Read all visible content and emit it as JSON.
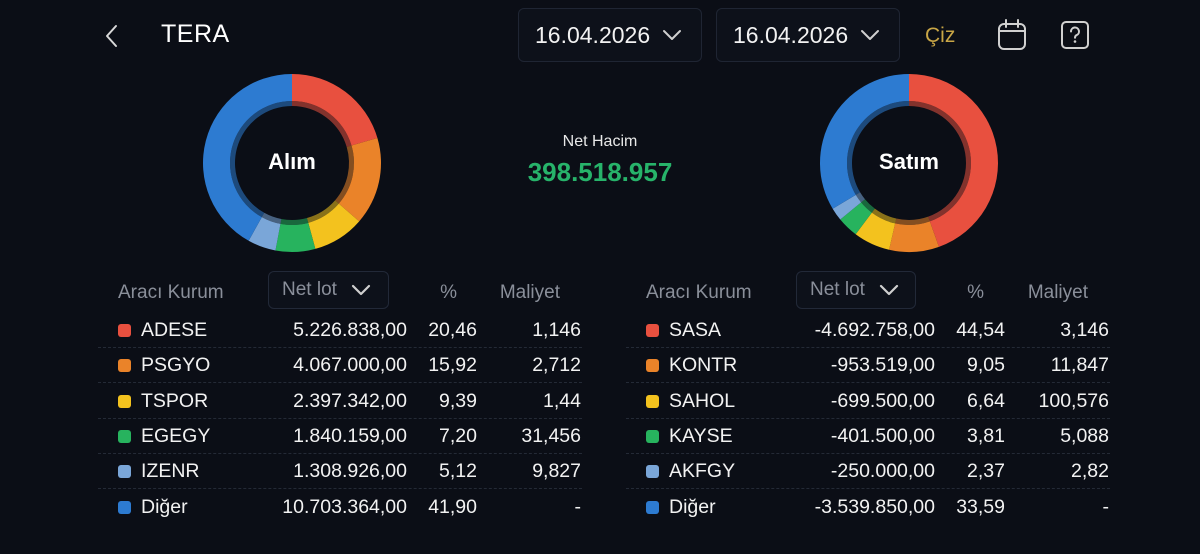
{
  "header": {
    "title": "TERA",
    "date_from": "16.04.2026",
    "date_to": "16.04.2026",
    "draw_label": "Çiz",
    "icons": [
      "back-chevron-icon",
      "calendar-icon",
      "help-question-icon"
    ]
  },
  "summary": {
    "net_volume_label": "Net Hacim",
    "net_volume_value": "398.518.957",
    "net_volume_color": "#27b36a"
  },
  "colors": {
    "c1": "#e8503f",
    "c2": "#ea8329",
    "c3": "#f3c21e",
    "c4": "#27b35e",
    "c5": "#7aa6d8",
    "c6": "#2d7bd1"
  },
  "buy": {
    "donut_label": "Alım",
    "columns": {
      "broker": "Aracı Kurum",
      "net_lot": "Net lot",
      "pct": "%",
      "cost": "Maliyet"
    },
    "rows": [
      {
        "name": "ADESE",
        "lot": "5.226.838,00",
        "pct": "20,46",
        "cost": "1,146",
        "color": "#e8503f"
      },
      {
        "name": "PSGYO",
        "lot": "4.067.000,00",
        "pct": "15,92",
        "cost": "2,712",
        "color": "#ea8329"
      },
      {
        "name": "TSPOR",
        "lot": "2.397.342,00",
        "pct": "9,39",
        "cost": "1,44",
        "color": "#f3c21e"
      },
      {
        "name": "EGEGY",
        "lot": "1.840.159,00",
        "pct": "7,20",
        "cost": "31,456",
        "color": "#27b35e"
      },
      {
        "name": "IZENR",
        "lot": "1.308.926,00",
        "pct": "5,12",
        "cost": "9,827",
        "color": "#7aa6d8"
      },
      {
        "name": "Diğer",
        "lot": "10.703.364,00",
        "pct": "41,90",
        "cost": "-",
        "color": "#2d7bd1"
      }
    ]
  },
  "sell": {
    "donut_label": "Satım",
    "columns": {
      "broker": "Aracı Kurum",
      "net_lot": "Net lot",
      "pct": "%",
      "cost": "Maliyet"
    },
    "rows": [
      {
        "name": "SASA",
        "lot": "-4.692.758,00",
        "pct": "44,54",
        "cost": "3,146",
        "color": "#e8503f"
      },
      {
        "name": "KONTR",
        "lot": "-953.519,00",
        "pct": "9,05",
        "cost": "11,847",
        "color": "#ea8329"
      },
      {
        "name": "SAHOL",
        "lot": "-699.500,00",
        "pct": "6,64",
        "cost": "100,576",
        "color": "#f3c21e"
      },
      {
        "name": "KAYSE",
        "lot": "-401.500,00",
        "pct": "3,81",
        "cost": "5,088",
        "color": "#27b35e"
      },
      {
        "name": "AKFGY",
        "lot": "-250.000,00",
        "pct": "2,37",
        "cost": "2,82",
        "color": "#7aa6d8"
      },
      {
        "name": "Diğer",
        "lot": "-3.539.850,00",
        "pct": "33,59",
        "cost": "-",
        "color": "#2d7bd1"
      }
    ]
  },
  "chart_data": [
    {
      "type": "pie",
      "title": "Alım",
      "categories": [
        "ADESE",
        "PSGYO",
        "TSPOR",
        "EGEGY",
        "IZENR",
        "Diğer"
      ],
      "values": [
        20.46,
        15.92,
        9.39,
        7.2,
        5.12,
        41.9
      ]
    },
    {
      "type": "pie",
      "title": "Satım",
      "categories": [
        "SASA",
        "KONTR",
        "SAHOL",
        "KAYSE",
        "AKFGY",
        "Diğer"
      ],
      "values": [
        44.54,
        9.05,
        6.64,
        3.81,
        2.37,
        33.59
      ]
    }
  ]
}
